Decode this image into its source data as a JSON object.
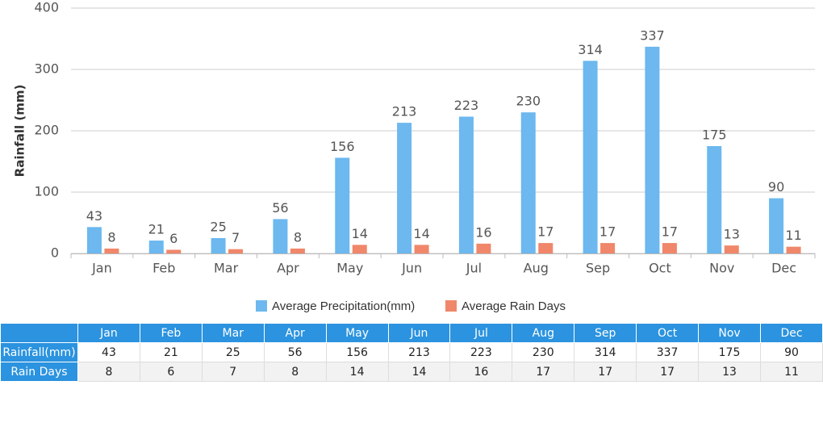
{
  "chart_data": {
    "type": "bar",
    "y_label": "Rainfall (mm)",
    "categories": [
      "Jan",
      "Feb",
      "Mar",
      "Apr",
      "May",
      "Jun",
      "Jul",
      "Aug",
      "Sep",
      "Oct",
      "Nov",
      "Dec"
    ],
    "series": [
      {
        "name": "Average Precipitation(mm)",
        "color": "#6cb8ef",
        "values": [
          43,
          21,
          25,
          56,
          156,
          213,
          223,
          230,
          314,
          337,
          175,
          90
        ]
      },
      {
        "name": "Average Rain Days",
        "color": "#f0876a",
        "values": [
          8,
          6,
          7,
          8,
          14,
          14,
          16,
          17,
          17,
          17,
          13,
          11
        ]
      }
    ],
    "ylim": [
      0,
      400
    ],
    "yticks": [
      0,
      100,
      200,
      300,
      400
    ],
    "grid": true
  },
  "table": {
    "row_labels": [
      "Rainfall(mm)",
      "Rain Days"
    ]
  }
}
